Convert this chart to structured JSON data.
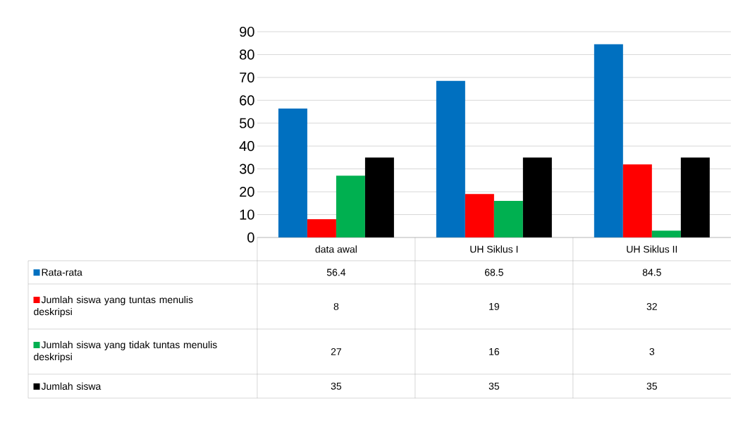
{
  "chart_data": {
    "type": "bar",
    "categories": [
      "data awal",
      "UH Siklus I",
      "UH Siklus II"
    ],
    "series": [
      {
        "name": "Rata-rata",
        "color": "#0070c0",
        "values": [
          56.4,
          68.5,
          84.5
        ]
      },
      {
        "name": "Jumlah siswa yang tuntas menulis deskripsi",
        "color": "#ff0000",
        "values": [
          8,
          19,
          32
        ]
      },
      {
        "name": "Jumlah siswa yang tidak tuntas menulis deskripsi",
        "color": "#00b050",
        "values": [
          27,
          16,
          3
        ]
      },
      {
        "name": "Jumlah siswa",
        "color": "#000000",
        "values": [
          35,
          35,
          35
        ]
      }
    ],
    "ylim": [
      0,
      90
    ],
    "yticks": [
      0,
      10,
      20,
      30,
      40,
      50,
      60,
      70,
      80,
      90
    ],
    "grid": "y",
    "legend": "bottom",
    "data_labels": true
  }
}
